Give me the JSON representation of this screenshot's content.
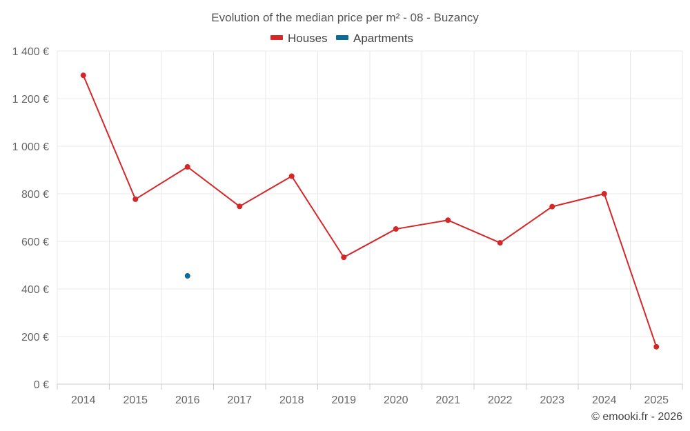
{
  "chart_data": {
    "type": "line",
    "title": "Evolution of the median price per m² - 08 - Buzancy",
    "categories": [
      "2014",
      "2015",
      "2016",
      "2017",
      "2018",
      "2019",
      "2020",
      "2021",
      "2022",
      "2023",
      "2024",
      "2025"
    ],
    "ylim": [
      0,
      1400
    ],
    "yticks": [
      0,
      200,
      400,
      600,
      800,
      1000,
      1200,
      1400
    ],
    "ytick_labels": [
      "0 €",
      "200 €",
      "400 €",
      "600 €",
      "800 €",
      "1 000 €",
      "1 200 €",
      "1 400 €"
    ],
    "grid": true,
    "legend_position": "top-center",
    "series": [
      {
        "name": "Houses",
        "color": "#d62728",
        "values": [
          1298,
          777,
          913,
          747,
          874,
          533,
          652,
          689,
          594,
          746,
          800,
          157
        ]
      },
      {
        "name": "Apartments",
        "color": "#0e6a96",
        "values": [
          null,
          null,
          455,
          null,
          null,
          null,
          null,
          null,
          null,
          null,
          null,
          null
        ]
      }
    ],
    "credit": "© emooki.fr - 2026"
  }
}
